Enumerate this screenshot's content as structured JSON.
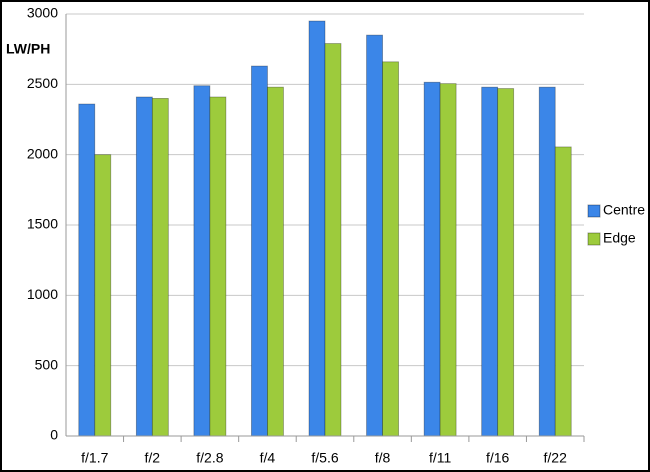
{
  "chart_data": {
    "type": "bar",
    "y_label": "LW/PH",
    "categories": [
      "f/1.7",
      "f/2",
      "f/2.8",
      "f/4",
      "f/5.6",
      "f/8",
      "f/11",
      "f/16",
      "f/22"
    ],
    "series": [
      {
        "name": "Centre",
        "color": "#3b86e8",
        "values": [
          2360,
          2410,
          2490,
          2630,
          2950,
          2850,
          2515,
          2480,
          2480
        ]
      },
      {
        "name": "Edge",
        "color": "#9dcb3c",
        "values": [
          2000,
          2400,
          2410,
          2480,
          2790,
          2660,
          2505,
          2470,
          2055
        ]
      }
    ],
    "ylim": [
      0,
      3000
    ],
    "yticks": [
      0,
      500,
      1000,
      1500,
      2000,
      2500,
      3000
    ],
    "grid": true,
    "legend": "right"
  }
}
